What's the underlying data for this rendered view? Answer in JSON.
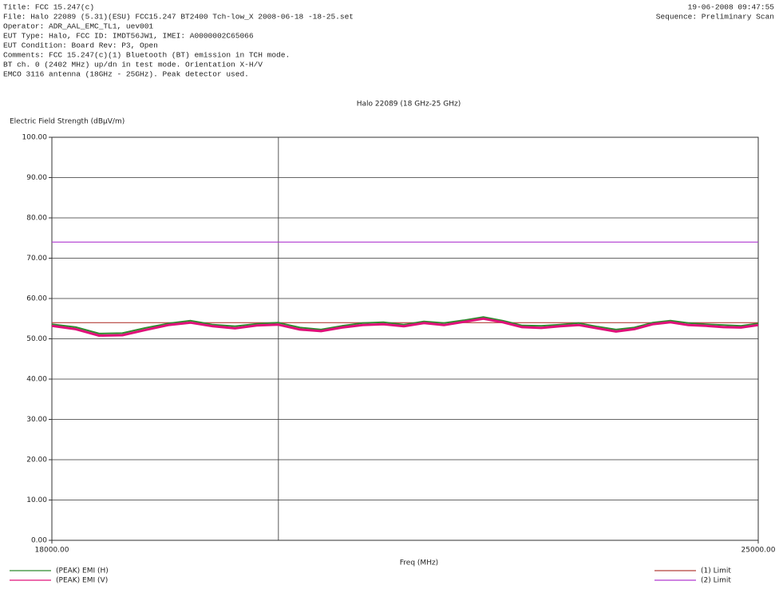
{
  "header": {
    "lines": [
      "Title: FCC 15.247(c)",
      "File: Halo 22089 (5.31)(ESU) FCC15.247 BT2400 Tch-low_X 2008-06-18 -18-25.set",
      "Operator: ADR_AAL_EMC_TL1, uev001",
      "EUT Type: Halo, FCC ID: IMDT56JW1, IMEI: A0000002C65066",
      "EUT Condition: Board Rev: P3, Open",
      "Comments: FCC 15.247(c)(1) Bluetooth (BT) emission in TCH mode.",
      "BT ch. 0 (2402 MHz) up/dn in test mode. Orientation X-H/V",
      "EMCO 3116 antenna (18GHz - 25GHz). Peak detector used."
    ],
    "date": "19-06-2008 09:47:55",
    "sequence": "Sequence: Preliminary Scan"
  },
  "chart_data": {
    "type": "line",
    "title": "Halo 22089 (18 GHz-25 GHz)",
    "y_label": "Electric Field Strength (dBµV/m)",
    "x_label": "Freq (MHz)",
    "xscale": "log",
    "xlim": [
      18000,
      25000
    ],
    "xticks": [
      {
        "value": 18000,
        "label": "18000.00"
      },
      {
        "value": 25000,
        "label": "25000.00"
      }
    ],
    "x_gridlines": [
      20000
    ],
    "ylim": [
      0,
      100
    ],
    "yticks": [
      {
        "value": 0,
        "label": "0.00"
      },
      {
        "value": 10,
        "label": "10.00"
      },
      {
        "value": 20,
        "label": "20.00"
      },
      {
        "value": 30,
        "label": "30.00"
      },
      {
        "value": 40,
        "label": "40.00"
      },
      {
        "value": 50,
        "label": "50.00"
      },
      {
        "value": 60,
        "label": "60.00"
      },
      {
        "value": 70,
        "label": "70.00"
      },
      {
        "value": 80,
        "label": "80.00"
      },
      {
        "value": 90,
        "label": "90.00"
      },
      {
        "value": 100,
        "label": "100.00"
      }
    ],
    "grid": true,
    "x": [
      18000,
      18200,
      18400,
      18600,
      18800,
      19000,
      19200,
      19400,
      19600,
      19800,
      20000,
      20200,
      20400,
      20600,
      20800,
      21000,
      21200,
      21400,
      21600,
      21800,
      22000,
      22200,
      22400,
      22600,
      22800,
      23000,
      23200,
      23400,
      23600,
      23800,
      24000,
      24200,
      24400,
      24600,
      24800,
      25000
    ],
    "series": [
      {
        "name": "(PEAK) EMI (H)",
        "color": "#2e8b2e",
        "values": [
          53.6,
          52.9,
          51.3,
          51.4,
          52.7,
          53.8,
          54.5,
          53.5,
          53.1,
          53.7,
          54.0,
          52.8,
          52.3,
          53.2,
          53.9,
          54.1,
          53.5,
          54.3,
          53.9,
          54.6,
          55.4,
          54.5,
          53.3,
          53.2,
          53.5,
          53.9,
          53.0,
          52.3,
          52.8,
          54.0,
          54.5,
          53.9,
          53.6,
          53.4,
          53.2,
          53.8
        ]
      },
      {
        "name": "(PEAK) EMI (V)",
        "color": "#e0107a",
        "values": [
          53.2,
          52.4,
          50.8,
          50.9,
          52.2,
          53.4,
          54.0,
          53.1,
          52.6,
          53.3,
          53.5,
          52.3,
          51.9,
          52.8,
          53.4,
          53.6,
          53.1,
          53.9,
          53.4,
          54.2,
          55.0,
          54.1,
          52.9,
          52.7,
          53.1,
          53.4,
          52.6,
          51.8,
          52.4,
          53.6,
          54.1,
          53.4,
          53.2,
          52.9,
          52.8,
          53.4
        ]
      }
    ],
    "limits": [
      {
        "name": "(1) Limit",
        "color": "#b5403a",
        "value": 54
      },
      {
        "name": "(2) Limit",
        "color": "#b03ad0",
        "value": 74
      }
    ]
  }
}
